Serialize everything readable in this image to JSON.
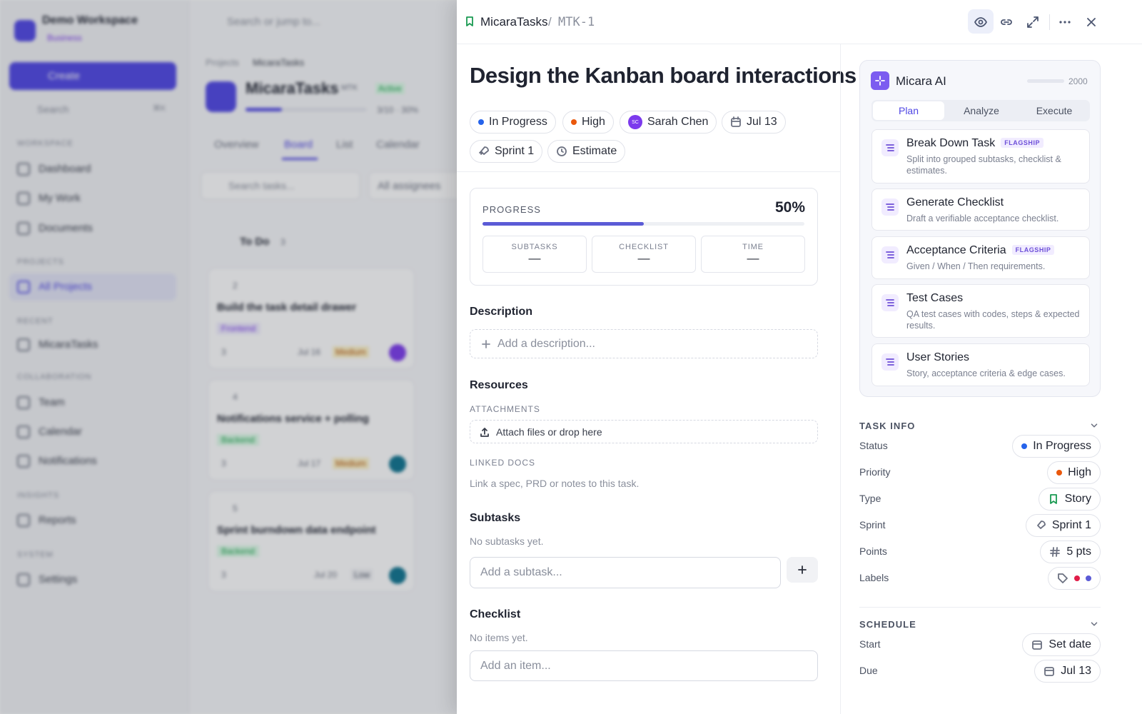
{
  "app": {
    "search": "Search or jump to...",
    "workspace": "Demo Workspace",
    "plan": "Business",
    "create": "Create",
    "sidebar_search": "Search",
    "shortcut": "⌘K",
    "nav": [
      {
        "heading": "WORKSPACE",
        "items": [
          "Dashboard",
          "My Work",
          "Documents"
        ]
      },
      {
        "heading": "PROJECTS",
        "items": [
          "All Projects"
        ]
      },
      {
        "heading": "RECENT",
        "items": [
          "MicaraTasks"
        ]
      },
      {
        "heading": "COLLABORATION",
        "items": [
          "Team",
          "Calendar",
          "Notifications"
        ]
      },
      {
        "heading": "INSIGHTS",
        "items": [
          "Reports"
        ]
      },
      {
        "heading": "SYSTEM",
        "items": [
          "Settings"
        ]
      }
    ],
    "breadcrumb": [
      "Projects",
      "MicaraTasks"
    ],
    "project": {
      "name": "MicaraTasks",
      "key": "MTK",
      "status": "Active",
      "progress": "3/10 · 30%"
    },
    "tabs": [
      "Overview",
      "Board",
      "List",
      "Calendar"
    ],
    "task_search": "Search tasks...",
    "assignee_filter": "All assignees",
    "column": {
      "name": "To Do",
      "count": "3",
      "cards": [
        {
          "id": "2",
          "title": "Build the task detail drawer",
          "tag": "Frontend",
          "subtasks": "3",
          "due": "Jul 16",
          "priority": "Medium"
        },
        {
          "id": "4",
          "title": "Notifications service + polling",
          "tag": "Backend",
          "subtasks": "3",
          "due": "Jul 17",
          "priority": "Medium"
        },
        {
          "id": "5",
          "title": "Sprint burndown data endpoint",
          "tag": "Backend",
          "subtasks": "3",
          "due": "Jul 20",
          "priority": "Low"
        }
      ]
    }
  },
  "drawer": {
    "project": "MicaraTasks",
    "separator": "/",
    "key": "MTK-1",
    "title": "Design the Kanban board interactions",
    "chips": {
      "status": "In Progress",
      "priority": "High",
      "assignee_initials": "SC",
      "assignee": "Sarah Chen",
      "due": "Jul 13",
      "sprint": "Sprint 1",
      "estimate": "Estimate"
    },
    "progress": {
      "label": "PROGRESS",
      "value": 50,
      "value_label": "50%"
    },
    "stats": [
      {
        "label": "SUBTASKS",
        "value": "—"
      },
      {
        "label": "CHECKLIST",
        "value": "—"
      },
      {
        "label": "TIME",
        "value": "—"
      }
    ],
    "description": {
      "heading": "Description",
      "placeholder": "Add a description..."
    },
    "resources": {
      "heading": "Resources",
      "attachments": "ATTACHMENTS",
      "attach": "Attach files or drop here",
      "linked_docs": "LINKED DOCS",
      "linked_hint": "Link a spec, PRD or notes to this task."
    },
    "subtasks": {
      "heading": "Subtasks",
      "empty": "No subtasks yet.",
      "placeholder": "Add a subtask..."
    },
    "checklist": {
      "heading": "Checklist",
      "empty": "No items yet.",
      "placeholder": "Add an item..."
    },
    "ai": {
      "title": "Micara AI",
      "credits": "2000",
      "tabs": [
        "Plan",
        "Analyze",
        "Execute"
      ],
      "actions": [
        {
          "title": "Break Down Task",
          "badge": "FLAGSHIP",
          "desc": "Split into grouped subtasks, checklist & estimates."
        },
        {
          "title": "Generate Checklist",
          "desc": "Draft a verifiable acceptance checklist."
        },
        {
          "title": "Acceptance Criteria",
          "badge": "FLAGSHIP",
          "desc": "Given / When / Then requirements."
        },
        {
          "title": "Test Cases",
          "desc": "QA test cases with codes, steps & expected results."
        },
        {
          "title": "User Stories",
          "desc": "Story, acceptance criteria & edge cases."
        }
      ]
    },
    "task_info": {
      "heading": "TASK INFO",
      "rows": [
        {
          "label": "Status",
          "value": "In Progress"
        },
        {
          "label": "Priority",
          "value": "High"
        },
        {
          "label": "Type",
          "value": "Story"
        },
        {
          "label": "Sprint",
          "value": "Sprint 1"
        },
        {
          "label": "Points",
          "value": "5 pts"
        },
        {
          "label": "Labels"
        }
      ]
    },
    "schedule": {
      "heading": "SCHEDULE",
      "rows": [
        {
          "label": "Start",
          "value": "Set date"
        },
        {
          "label": "Due",
          "value": "Jul 13"
        }
      ]
    }
  }
}
